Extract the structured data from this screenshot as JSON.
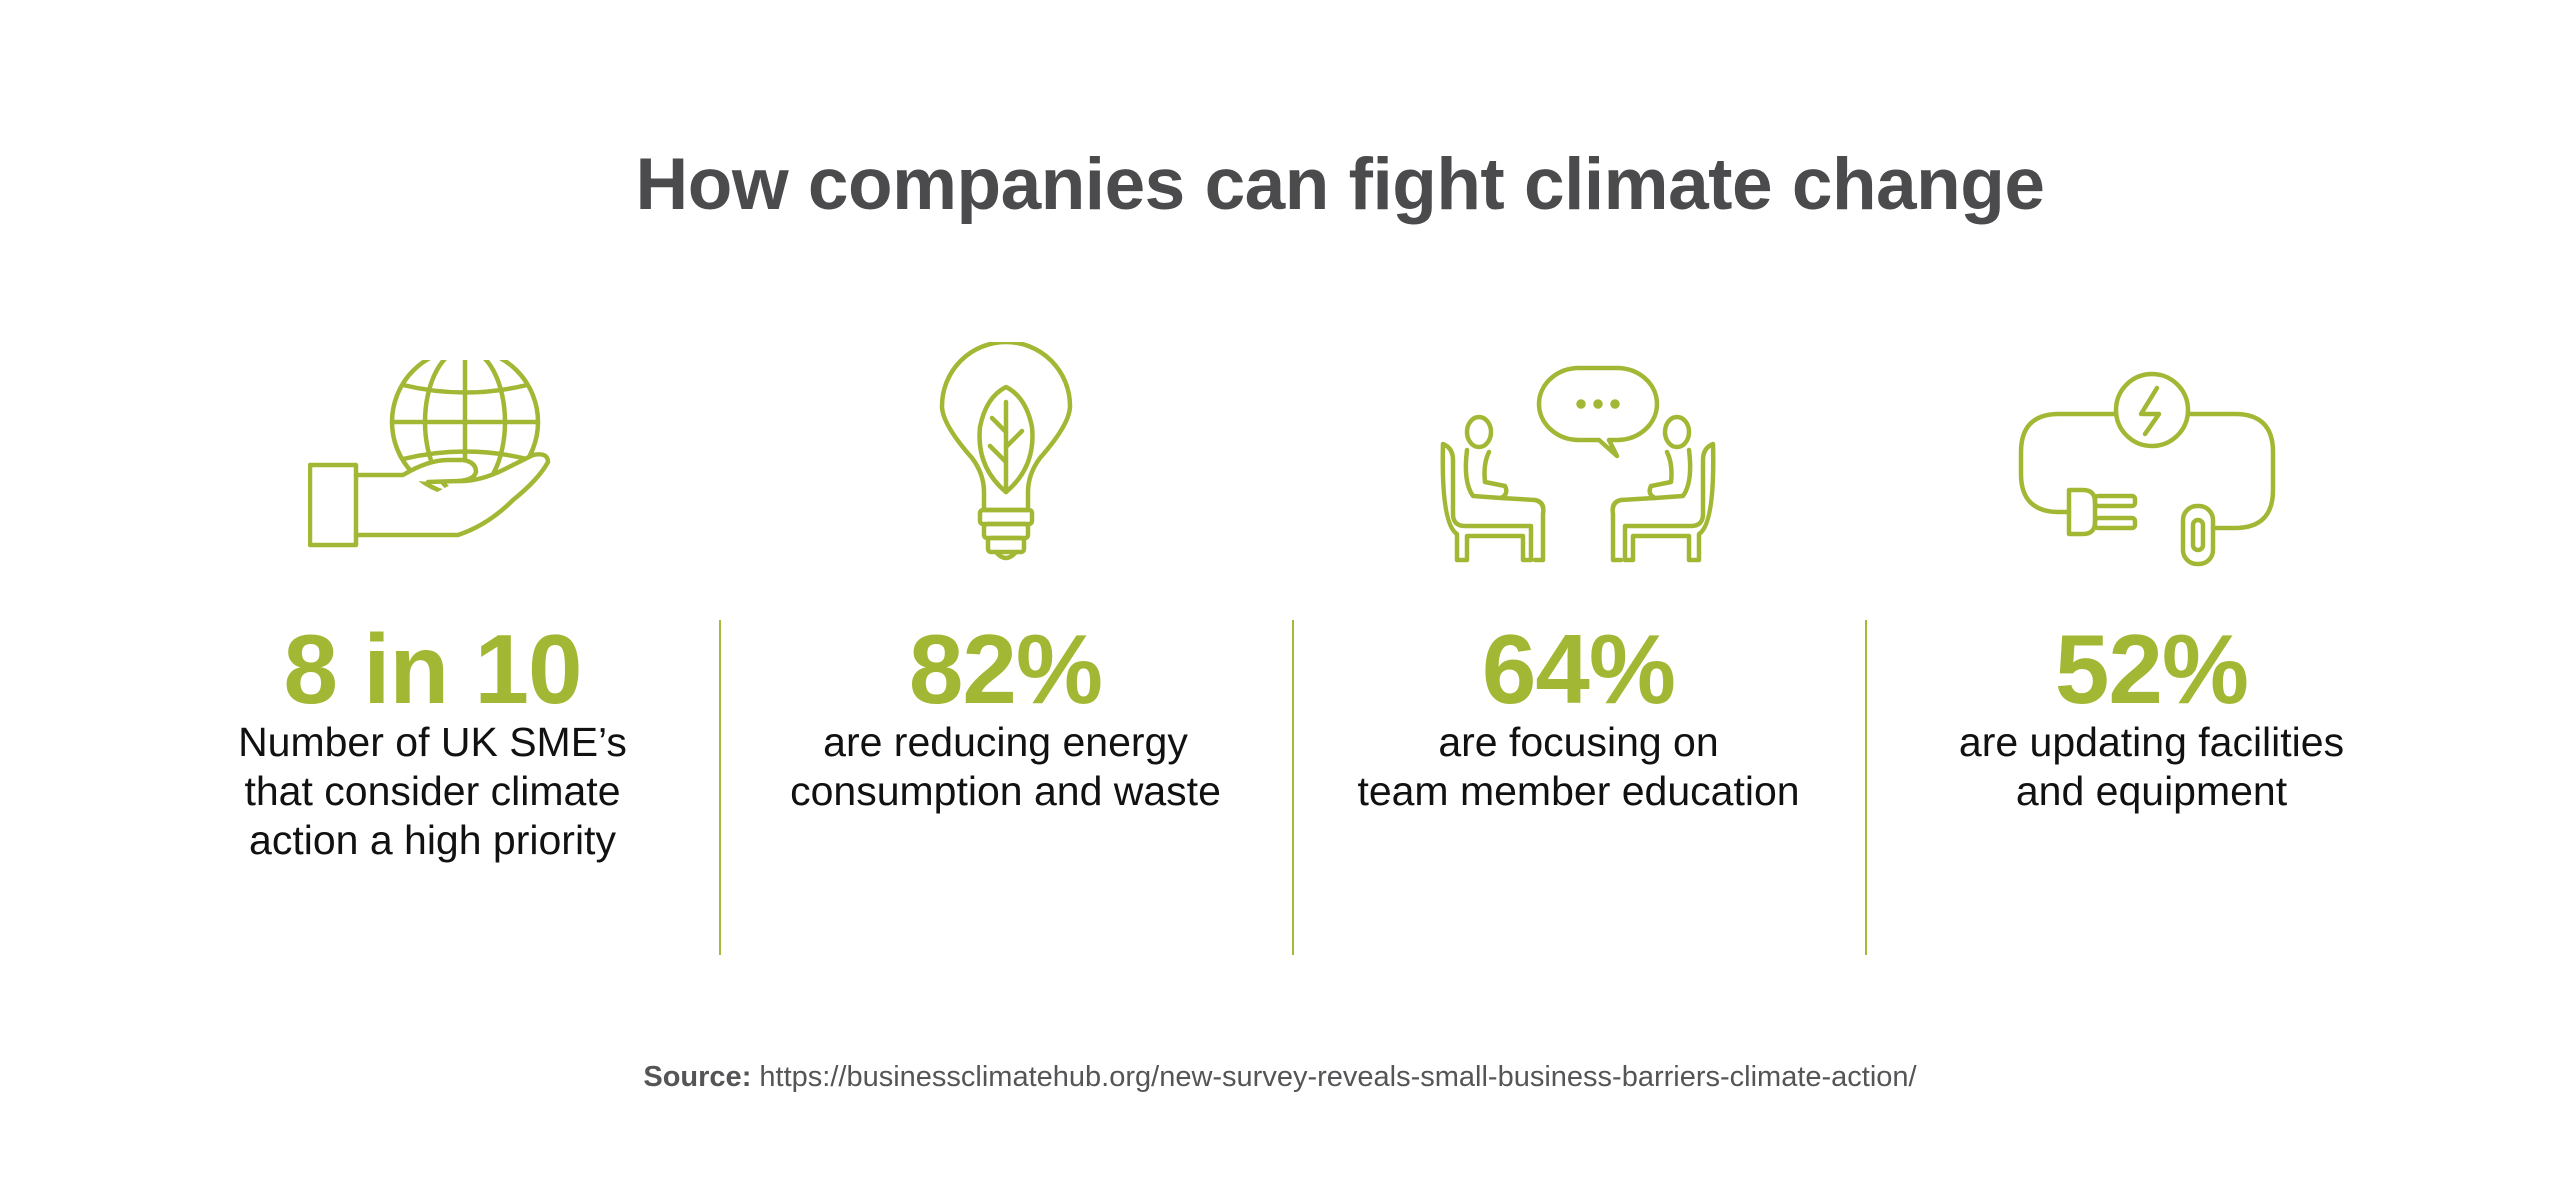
{
  "title": "How companies can fight climate change",
  "stats": [
    {
      "icon": "hand-holding-globe-icon",
      "value": "8 in 10",
      "description_lines": [
        "Number of UK SME’s",
        "that consider climate",
        "action a high priority"
      ]
    },
    {
      "icon": "lightbulb-leaf-icon",
      "value": "82%",
      "description_lines": [
        "are reducing energy",
        "consumption and waste"
      ]
    },
    {
      "icon": "people-conversation-icon",
      "value": "64%",
      "description_lines": [
        "are focusing on",
        "team member education"
      ]
    },
    {
      "icon": "power-plug-icon",
      "value": "52%",
      "description_lines": [
        "are updating facilities",
        "and equipment"
      ]
    }
  ],
  "source": {
    "label": "Source:",
    "url": "https://businessclimatehub.org/new-survey-reveals-small-business-barriers-climate-action/"
  },
  "colors": {
    "accent": "#a2b835",
    "title": "#4b4b4d",
    "body_text": "#111111",
    "source_text": "#555558"
  }
}
